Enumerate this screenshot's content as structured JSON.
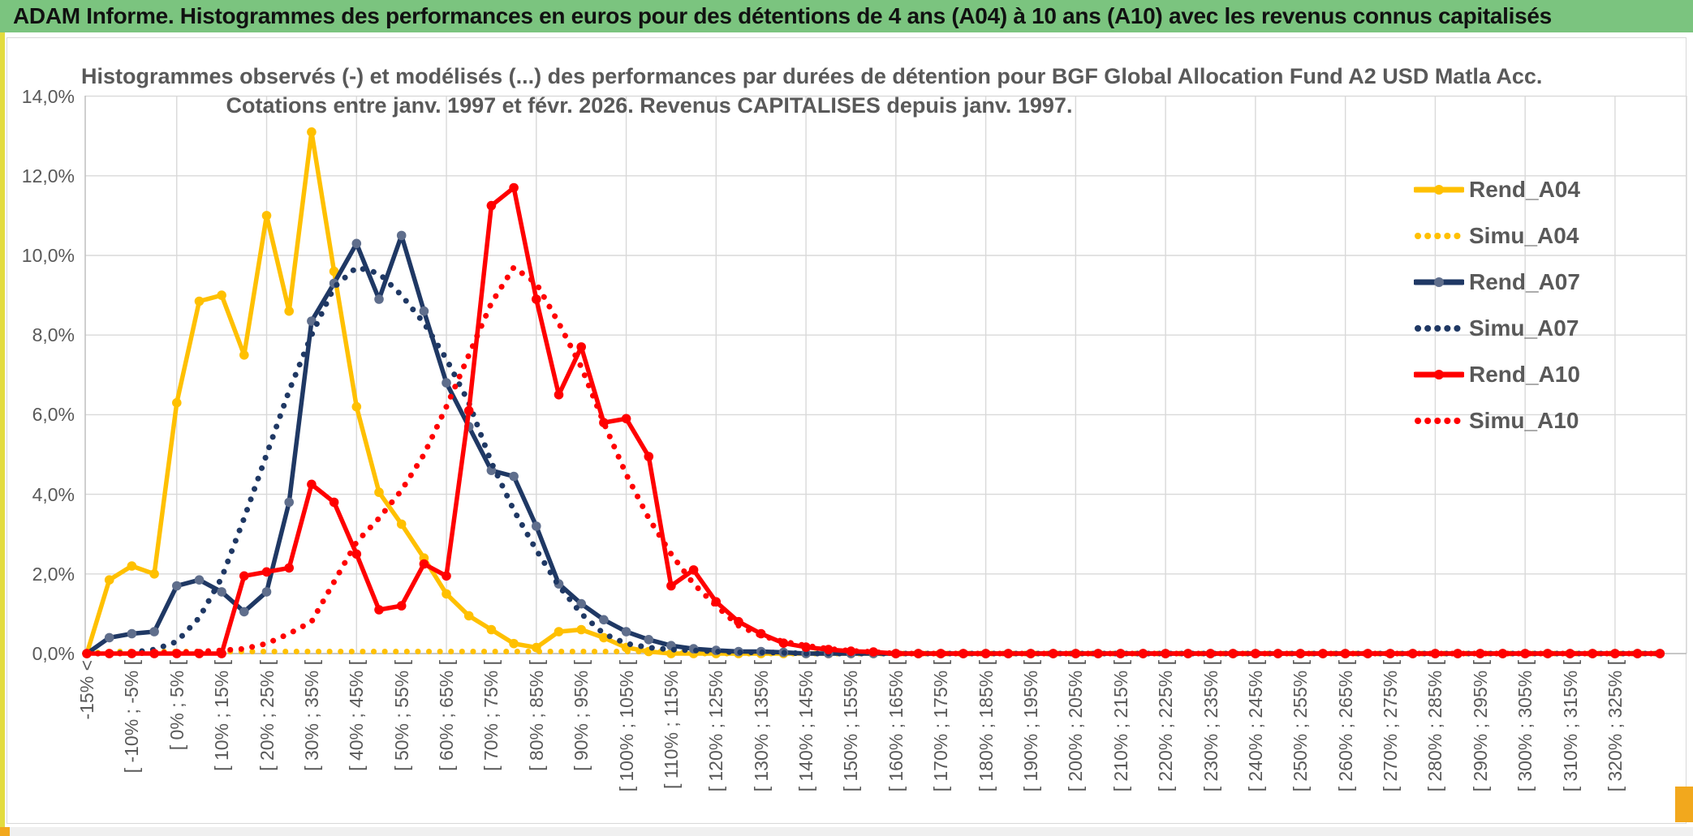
{
  "header": {
    "title": "ADAM Informe. Histogrammes des performances en euros pour des détentions de 4 ans (A04) à 10 ans (A10) avec les revenus connus capitalisés"
  },
  "colors": {
    "header_green": "#7BC47F",
    "accent_orange": "#F2A81D",
    "sheet_edge_yellow": "#E3DC3F",
    "grid": "#D9D9D9",
    "axis": "#BFBFBF",
    "text_gray": "#595959",
    "series_yellow": "#FFC000",
    "series_navy": "#1F3864",
    "series_navy_marker": "#5F6E8C",
    "series_red": "#FF0000"
  },
  "chart_data": {
    "type": "line",
    "title_line1": "Histogrammes observés (-) et modélisés (...) des performances par durées de détention pour BGF Global Allocation Fund A2 USD Matla Acc.",
    "title_line2": "Cotations entre janv. 1997 et févr. 2026. Revenus CAPITALISES depuis janv. 1997.",
    "grid": true,
    "legend_position": "right",
    "ylim": [
      0,
      14
    ],
    "y_tick_step": 2,
    "y_tick_labels": [
      "14,0%",
      "12,0%",
      "10,0%",
      "8,0%",
      "6,0%",
      "4,0%",
      "2,0%",
      "0,0%"
    ],
    "y_tick_values": [
      14,
      12,
      10,
      8,
      6,
      4,
      2,
      0
    ],
    "x_axis_note": "71 bins of 5% width; tick labels shown on every other bin starting at bin 0",
    "n_bins": 71,
    "tick_label_bin_step": 2,
    "x_tick_labels": [
      "-15% <",
      "[ -10% ; -5% [",
      "[ 0% ; 5% [",
      "[ 10% ; 15% [",
      "[ 20% ; 25% [",
      "[ 30% ; 35% [",
      "[ 40% ; 45% [",
      "[ 50% ; 55% [",
      "[ 60% ; 65% [",
      "[ 70% ; 75% [",
      "[ 80% ; 85% [",
      "[ 90% ; 95% [",
      "[ 100% ; 105% [",
      "[ 110% ; 115% [",
      "[ 120% ; 125% [",
      "[ 130% ; 135% [",
      "[ 140% ; 145% [",
      "[ 150% ; 155% [",
      "[ 160% ; 165% [",
      "[ 170% ; 175% [",
      "[ 180% ; 185% [",
      "[ 190% ; 195% [",
      "[ 200% ; 205% [",
      "[ 210% ; 215% [",
      "[ 220% ; 225% [",
      "[ 230% ; 235% [",
      "[ 240% ; 245% [",
      "[ 250% ; 255% [",
      "[ 260% ; 265% [",
      "[ 270% ; 275% [",
      "[ 280% ; 285% [",
      "[ 290% ; 295% [",
      "[ 300% ; 305% [",
      "[ 310% ; 315% [",
      "[ 320% ; 325% ["
    ],
    "series": [
      {
        "name": "Rend_A04",
        "color": "#FFC000",
        "line": "solid",
        "markers": true,
        "marker_color": "#FFC000",
        "values": [
          0,
          1.85,
          2.2,
          2,
          6.3,
          8.85,
          9,
          7.5,
          11,
          8.6,
          13.1,
          9.6,
          6.2,
          4.05,
          3.25,
          2.4,
          1.5,
          0.95,
          0.6,
          0.25,
          0.15,
          0.55,
          0.6,
          0.4,
          0.15,
          0.05
        ]
      },
      {
        "name": "Simu_A04",
        "color": "#FFC000",
        "line": "dotted",
        "markers": false,
        "values": [
          0,
          0.05,
          0.05,
          0.05,
          0.05,
          0.05,
          0.05,
          0.05,
          0.05,
          0.05,
          0.05,
          0.05,
          0.05,
          0.05,
          0.05,
          0.05,
          0.05,
          0.05,
          0.05,
          0.05,
          0.05,
          0.05,
          0.05,
          0.05,
          0.05,
          0.05,
          0.05
        ]
      },
      {
        "name": "Rend_A07",
        "color": "#1F3864",
        "line": "solid",
        "markers": true,
        "marker_color": "#5F6E8C",
        "values": [
          0,
          0.4,
          0.5,
          0.55,
          1.7,
          1.85,
          1.55,
          1.05,
          1.55,
          3.8,
          8.35,
          9.3,
          10.3,
          8.9,
          10.5,
          8.6,
          6.8,
          5.7,
          4.6,
          4.45,
          3.2,
          1.75,
          1.25,
          0.85,
          0.55,
          0.35,
          0.2,
          0.12,
          0.08,
          0.05,
          0.05,
          0.03
        ]
      },
      {
        "name": "Simu_A07",
        "color": "#1F3864",
        "line": "dotted",
        "markers": false,
        "values": [
          0,
          0,
          0.03,
          0.1,
          0.3,
          0.9,
          1.9,
          3.4,
          5,
          6.6,
          8,
          9.2,
          9.7,
          9.55,
          9,
          8.3,
          7.4,
          6.3,
          4.8,
          3.6,
          2.6,
          1.7,
          1,
          0.5,
          0.25,
          0.15,
          0.1,
          0.08,
          0.05,
          0.03,
          0.03,
          0.02
        ]
      },
      {
        "name": "Rend_A10",
        "color": "#FF0000",
        "line": "solid",
        "markers": true,
        "marker_color": "#FF0000",
        "values": [
          0,
          0,
          0,
          0,
          0,
          0,
          0,
          1.95,
          2.05,
          2.15,
          4.25,
          3.8,
          2.5,
          1.1,
          1.2,
          2.25,
          1.95,
          6.1,
          11.25,
          11.7,
          8.9,
          6.5,
          7.7,
          5.8,
          5.9,
          4.95,
          1.7,
          2.1,
          1.3,
          0.8,
          0.5,
          0.26,
          0.16,
          0.1,
          0.06,
          0.04
        ]
      },
      {
        "name": "Simu_A10",
        "color": "#FF0000",
        "line": "dotted",
        "markers": false,
        "values": [
          0,
          0,
          0,
          0.02,
          0.03,
          0.05,
          0.08,
          0.12,
          0.25,
          0.5,
          0.8,
          1.8,
          2.8,
          3.4,
          4.1,
          5,
          6.2,
          7.5,
          8.8,
          9.7,
          9.3,
          8.3,
          7.2,
          5.8,
          4.5,
          3.4,
          2.5,
          1.75,
          1.2,
          0.7,
          0.45,
          0.3,
          0.2,
          0.12,
          0.07,
          0.04
        ]
      }
    ],
    "legend_entries": [
      "Rend_A04",
      "Simu_A04",
      "Rend_A07",
      "Simu_A07",
      "Rend_A10",
      "Simu_A10"
    ]
  }
}
